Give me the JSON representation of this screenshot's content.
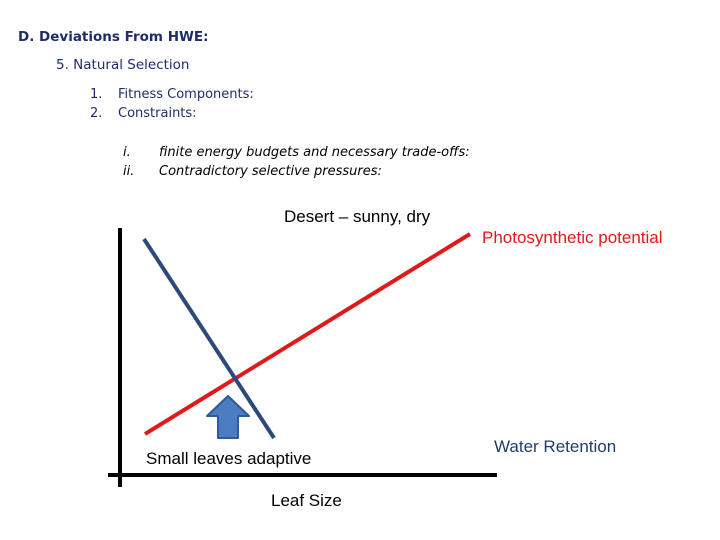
{
  "heading": "D. Deviations From HWE:",
  "subheading": "5. Natural Selection",
  "numbered_items": [
    {
      "num": "1.",
      "text": "Fitness Components:"
    },
    {
      "num": "2.",
      "text": "Constraints:"
    }
  ],
  "roman_items": [
    {
      "num": "i.",
      "text": "finite energy budgets and necessary trade-offs:"
    },
    {
      "num": "ii.",
      "text": "Contradictory selective pressures:"
    }
  ],
  "diagram": {
    "environment_label": "Desert – sunny, dry",
    "photosynthetic_label": "Photosynthetic potential",
    "water_label": "Water Retention",
    "optimum_label": "Small leaves adaptive",
    "x_axis_label": "Leaf Size",
    "colors": {
      "photosynthetic_line": "#e01a1a",
      "water_line": "#2b4a7a",
      "arrow_fill": "#4a7cc2",
      "arrow_stroke": "#2f5a99",
      "axis": "#000000"
    },
    "arrow_icon": "up-arrow-icon"
  }
}
